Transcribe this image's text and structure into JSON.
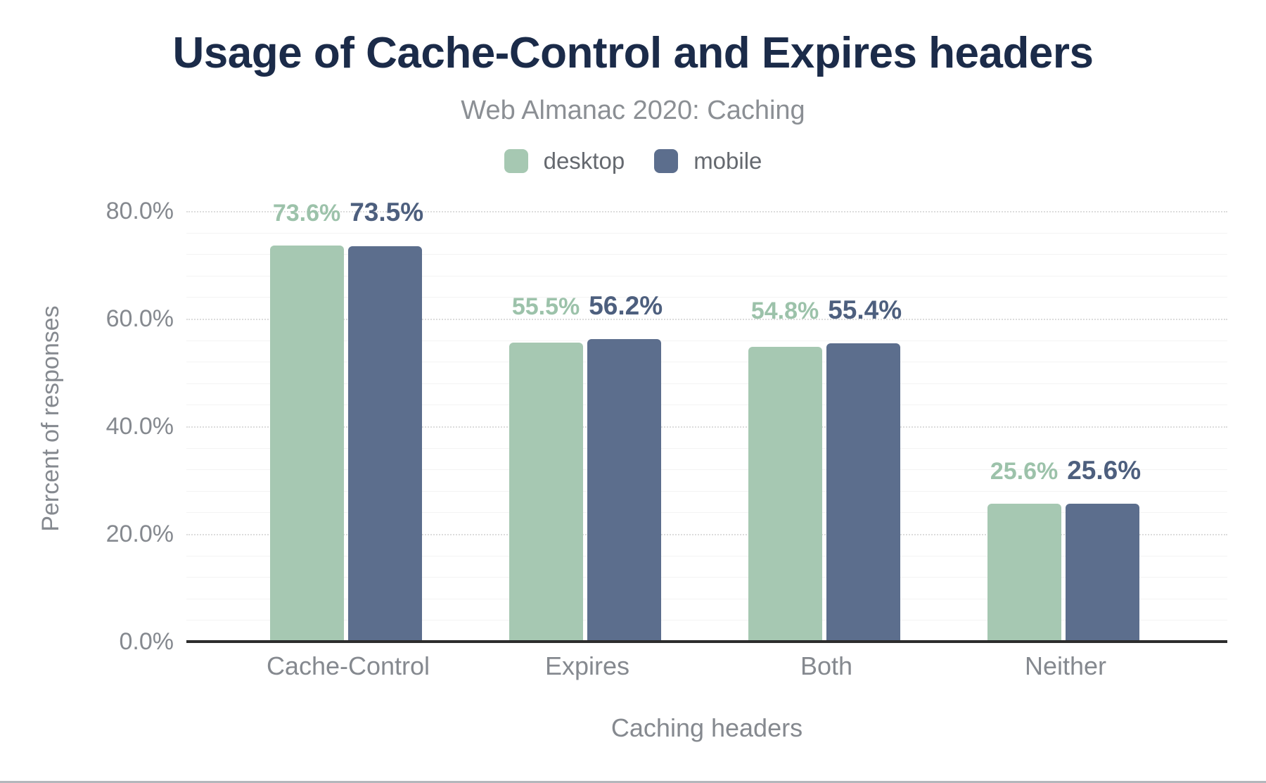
{
  "title": "Usage of Cache-Control and Expires headers",
  "subtitle": "Web Almanac 2020: Caching",
  "legend": {
    "items": [
      {
        "label": "desktop",
        "color": "#a6c8b2"
      },
      {
        "label": "mobile",
        "color": "#5c6e8d"
      }
    ]
  },
  "colors": {
    "title_text": "#1b2b49",
    "subtitle_text": "#8b8f94",
    "axis_text": "#85898f",
    "legend_text": "#65696f",
    "desktop_bar": "#a6c8b2",
    "mobile_bar": "#5c6e8d",
    "desktop_value_label": "#9cc2aa",
    "mobile_value_label": "#4d5f7e",
    "grid_major": "#dcdcdc",
    "grid_minor": "#f3f3f3",
    "axis_line": "#2d2d2d"
  },
  "chart_data": {
    "type": "bar",
    "title": "Usage of Cache-Control and Expires headers",
    "subtitle": "Web Almanac 2020: Caching",
    "categories": [
      "Cache-Control",
      "Expires",
      "Both",
      "Neither"
    ],
    "series": [
      {
        "name": "desktop",
        "color": "#a6c8b2",
        "label_color": "#9cc2aa",
        "values": [
          73.6,
          55.5,
          54.8,
          25.6
        ],
        "labels": [
          "73.6%",
          "55.5%",
          "54.8%",
          "25.6%"
        ]
      },
      {
        "name": "mobile",
        "color": "#5c6e8d",
        "label_color": "#4d5f7e",
        "values": [
          73.5,
          56.2,
          55.4,
          25.6
        ],
        "labels": [
          "73.5%",
          "56.2%",
          "55.4%",
          "25.6%"
        ]
      }
    ],
    "xlabel": "Caching headers",
    "ylabel": "Percent of responses",
    "ylim": [
      0,
      80
    ],
    "yticks": [
      {
        "value": 0,
        "label": "0.0%"
      },
      {
        "value": 20,
        "label": "20.0%"
      },
      {
        "value": 40,
        "label": "40.0%"
      },
      {
        "value": 60,
        "label": "60.0%"
      },
      {
        "value": 80,
        "label": "80.0%"
      }
    ],
    "grid": {
      "major_step": 20,
      "minor_step": 4,
      "major_style": "dotted",
      "minor_style": "solid"
    },
    "legend_position": "top"
  }
}
